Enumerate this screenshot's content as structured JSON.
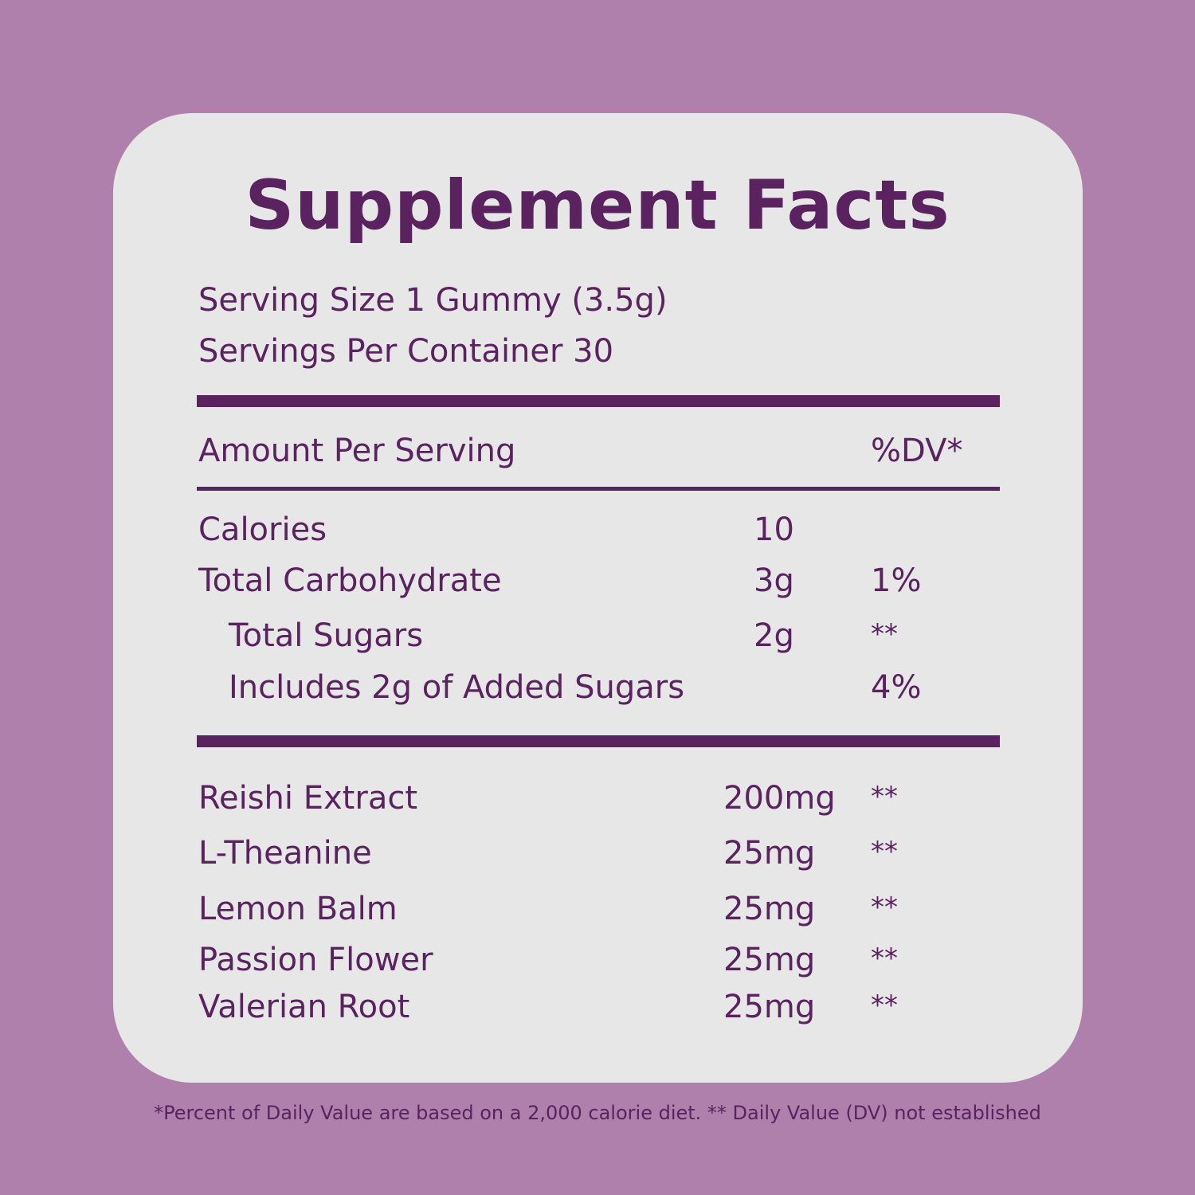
{
  "title": "Supplement Facts",
  "serving": {
    "size": "Serving Size 1 Gummy (3.5g)",
    "per_container": "Servings Per Container 30"
  },
  "header": {
    "amount_per_serving": "Amount Per Serving",
    "dv": "%DV*"
  },
  "nutrients": [
    {
      "name": "Calories",
      "amount": "10",
      "dv": ""
    },
    {
      "name": "Total Carbohydrate",
      "amount": "3g",
      "dv": "1%"
    },
    {
      "name": "Total Sugars",
      "amount": "2g",
      "dv": "**"
    },
    {
      "name": "Includes 2g of Added Sugars",
      "amount": "",
      "dv": "4%"
    }
  ],
  "ingredients": [
    {
      "name": "Reishi Extract",
      "amount": "200mg",
      "dv": "**"
    },
    {
      "name": "L-Theanine",
      "amount": "25mg",
      "dv": "**"
    },
    {
      "name": "Lemon Balm",
      "amount": "25mg",
      "dv": "**"
    },
    {
      "name": "Passion Flower",
      "amount": "25mg",
      "dv": "**"
    },
    {
      "name": "Valerian Root",
      "amount": "25mg",
      "dv": "**"
    }
  ],
  "footnote": "*Percent of Daily Value are based on a 2,000 calorie diet. ** Daily Value (DV) not established",
  "colors": {
    "background": "#ae80ab",
    "card": "#e8e7e8",
    "text": "#5a2360"
  }
}
